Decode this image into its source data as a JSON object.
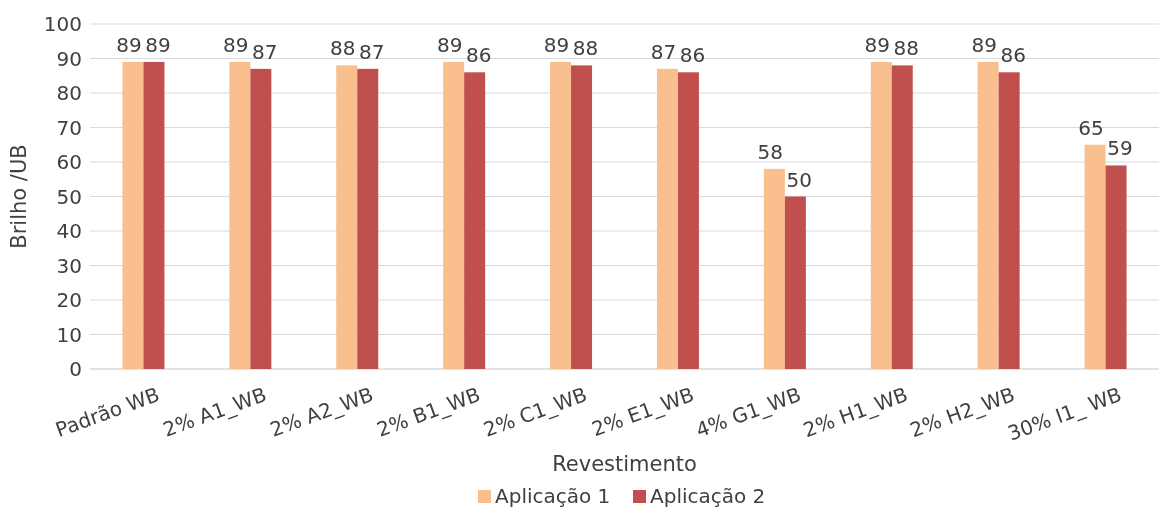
{
  "chart_data": {
    "type": "bar",
    "xlabel": "Revestimento",
    "ylabel": "Brilho /UB",
    "categories": [
      "Padrão WB",
      "2% A1_WB",
      "2% A2_WB",
      "2% B1_WB",
      "2% C1_WB",
      "2% E1_WB",
      "4% G1_WB",
      "2% H1_WB",
      "2% H2_WB",
      "30% I1_ WB"
    ],
    "series": [
      {
        "name": "Aplicação 1",
        "color": "#f9bf8f",
        "values": [
          89,
          89,
          88,
          89,
          89,
          87,
          58,
          89,
          89,
          65
        ]
      },
      {
        "name": "Aplicação 2",
        "color": "#c0504d",
        "values": [
          89,
          87,
          87,
          86,
          88,
          86,
          50,
          88,
          86,
          59
        ]
      }
    ],
    "ylim": [
      0,
      100
    ],
    "yticks": [
      0,
      10,
      20,
      30,
      40,
      50,
      60,
      70,
      80,
      90,
      100
    ],
    "grid": "y",
    "legend": "bottom",
    "data_labels": true
  }
}
